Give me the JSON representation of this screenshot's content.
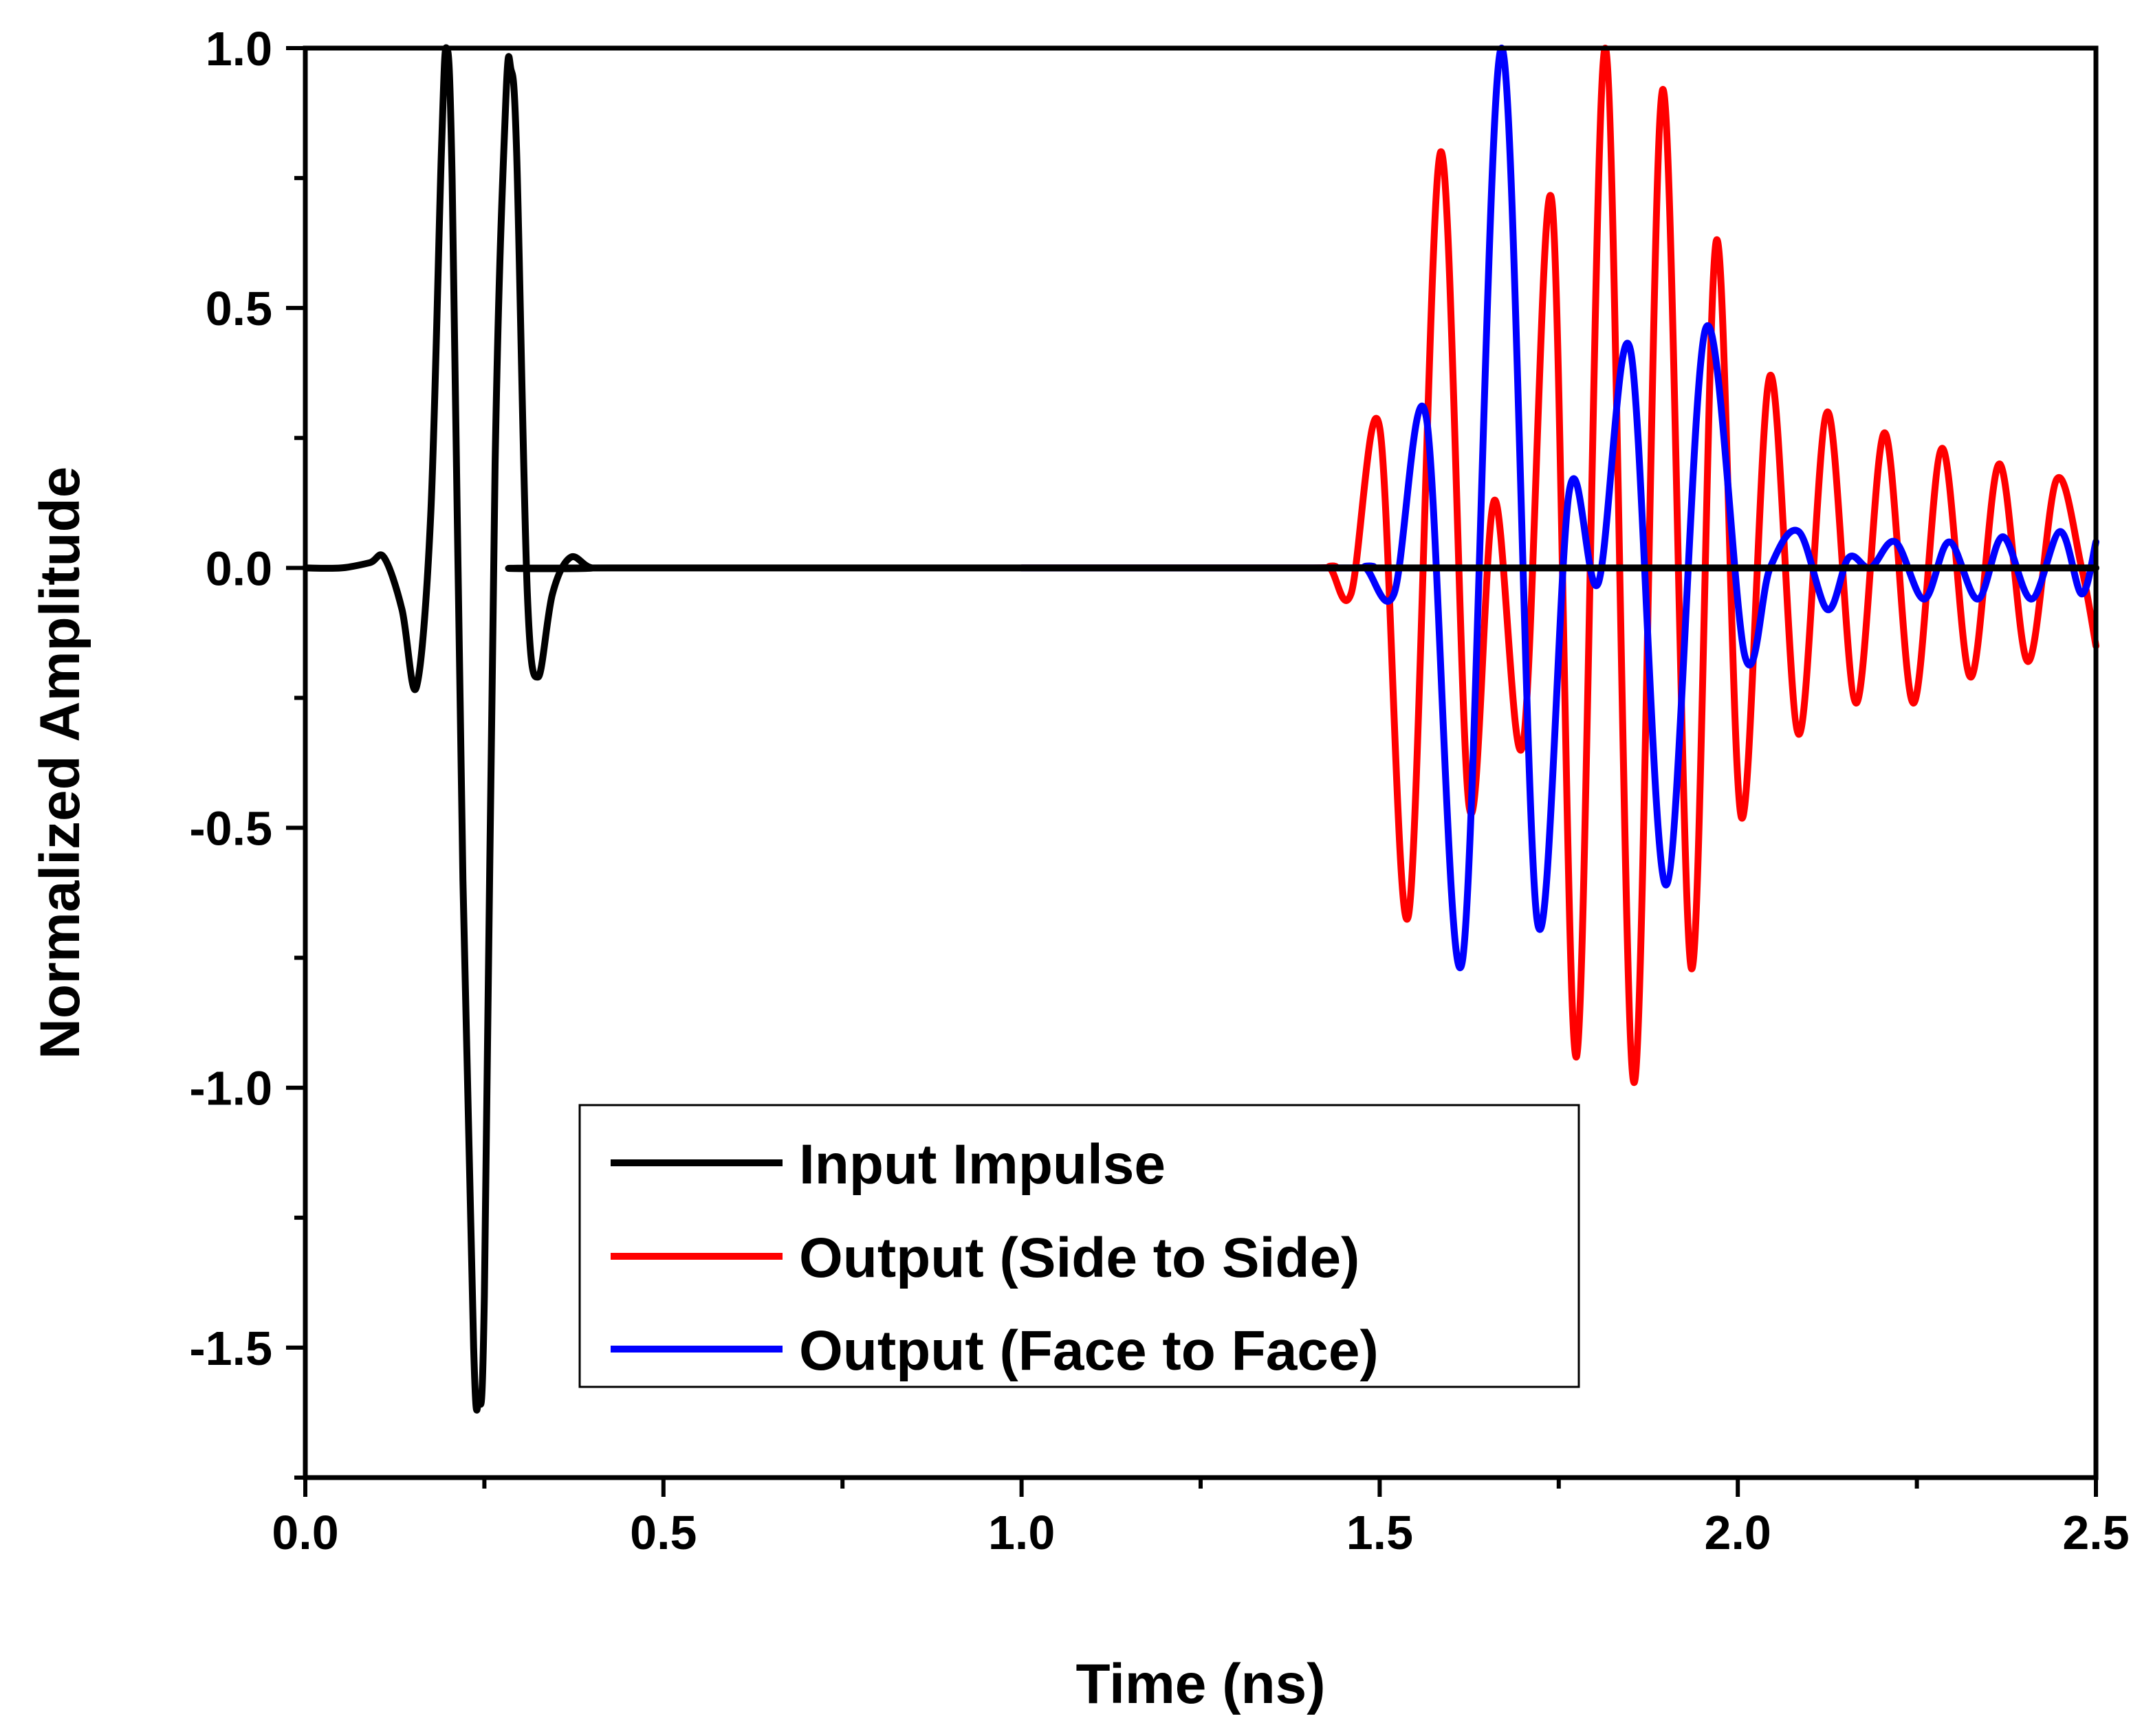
{
  "chart_data": {
    "type": "line",
    "title": "",
    "xlabel": "Time (ns)",
    "ylabel": "Normalized Amplitude",
    "xlim": [
      0.0,
      2.5
    ],
    "ylim": [
      -1.75,
      1.0
    ],
    "xticks": [
      0.0,
      0.5,
      1.0,
      1.5,
      2.0,
      2.5
    ],
    "xtick_labels": [
      "0.0",
      "0.5",
      "1.0",
      "1.5",
      "2.0",
      "2.5"
    ],
    "yticks": [
      1.0,
      0.5,
      0.0,
      -0.5,
      -1.0,
      -1.5
    ],
    "ytick_labels": [
      "1.0",
      "0.5",
      "0.0",
      "-0.5",
      "-1.0",
      "-1.5"
    ],
    "grid": false,
    "legend_position": "bottom-center",
    "series": [
      {
        "name": "Input Impulse",
        "color": "#000000",
        "x": [
          0.0,
          0.05,
          0.09,
          0.11,
          0.135,
          0.155,
          0.175,
          0.19,
          0.197,
          0.205,
          0.22,
          0.235,
          0.242,
          0.25,
          0.265,
          0.28,
          0.287,
          0.295,
          0.31,
          0.325,
          0.345,
          0.37,
          0.4,
          0.45,
          2.5
        ],
        "y": [
          0.0,
          0.0,
          0.01,
          0.02,
          -0.08,
          -0.23,
          0.1,
          0.8,
          1.0,
          0.75,
          -0.6,
          -1.5,
          -1.6,
          -1.4,
          0.2,
          0.9,
          0.96,
          0.8,
          -0.05,
          -0.21,
          -0.05,
          0.02,
          0.0,
          0.0,
          0.0
        ]
      },
      {
        "name": "Output (Side to Side)",
        "color": "#ff0000",
        "x": [
          1.0,
          1.4,
          1.43,
          1.46,
          1.5,
          1.54,
          1.585,
          1.625,
          1.66,
          1.7,
          1.74,
          1.775,
          1.815,
          1.855,
          1.895,
          1.935,
          1.97,
          2.005,
          2.045,
          2.085,
          2.125,
          2.165,
          2.205,
          2.245,
          2.285,
          2.325,
          2.365,
          2.405,
          2.445,
          2.48,
          2.5
        ],
        "y": [
          0.0,
          0.0,
          0.0,
          -0.05,
          0.27,
          -0.67,
          0.8,
          -0.46,
          0.13,
          -0.34,
          0.71,
          -0.94,
          1.0,
          -0.99,
          0.92,
          -0.77,
          0.63,
          -0.48,
          0.37,
          -0.32,
          0.3,
          -0.26,
          0.26,
          -0.26,
          0.23,
          -0.21,
          0.2,
          -0.18,
          0.17,
          0.0,
          -0.15
        ]
      },
      {
        "name": "Output (Face to Face)",
        "color": "#0000ff",
        "x": [
          1.0,
          1.45,
          1.48,
          1.52,
          1.565,
          1.615,
          1.67,
          1.72,
          1.765,
          1.805,
          1.85,
          1.9,
          1.955,
          2.01,
          2.045,
          2.085,
          2.125,
          2.155,
          2.185,
          2.22,
          2.26,
          2.295,
          2.335,
          2.37,
          2.41,
          2.45,
          2.48,
          2.5
        ],
        "y": [
          0.0,
          0.0,
          0.0,
          -0.05,
          0.29,
          -0.76,
          1.0,
          -0.68,
          0.15,
          -0.03,
          0.42,
          -0.61,
          0.46,
          -0.17,
          0.0,
          0.07,
          -0.08,
          0.02,
          0.0,
          0.05,
          -0.06,
          0.05,
          -0.06,
          0.06,
          -0.06,
          0.07,
          -0.05,
          0.05
        ]
      }
    ]
  }
}
